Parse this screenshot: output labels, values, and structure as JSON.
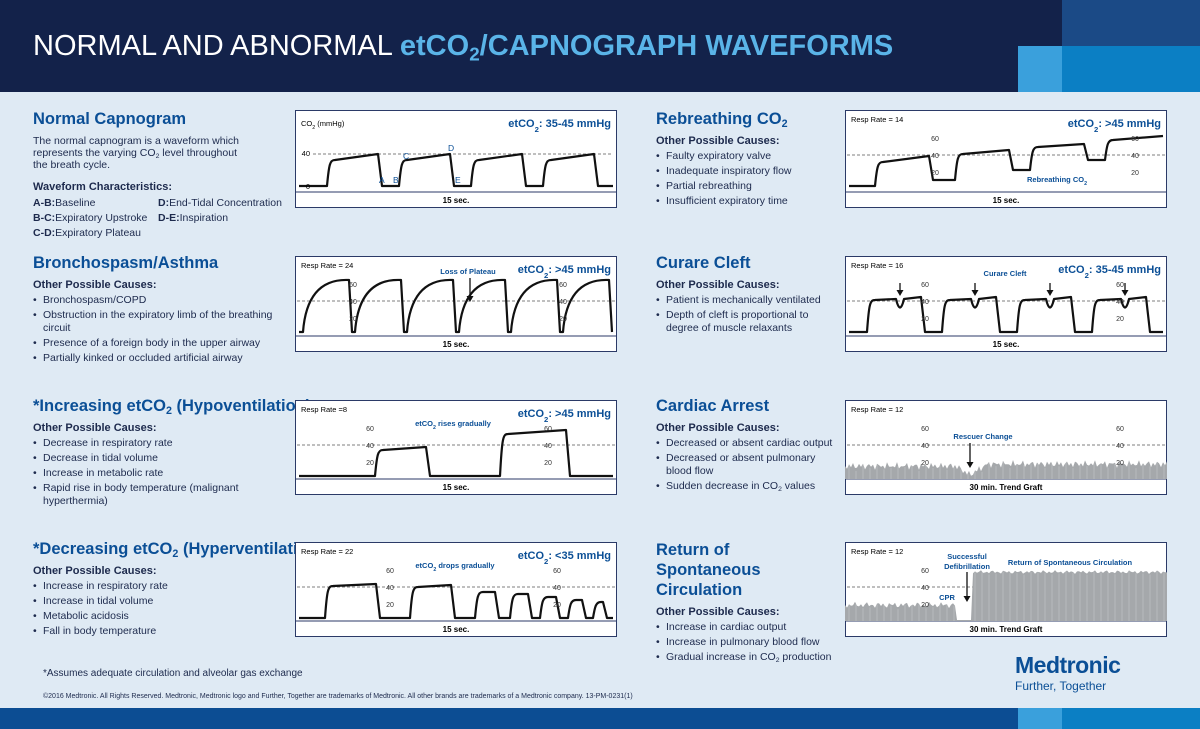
{
  "header": {
    "title_white": "NORMAL AND ABNORMAL ",
    "title_blue": [
      "etCO",
      "2",
      "/CAPNOGRAPH WAVEFORMS"
    ]
  },
  "panels": [
    {
      "title": "Normal Capnogram",
      "description": [
        "The normal capnogram is a waveform which represents the varying CO",
        "2",
        " level throughout the breath cycle."
      ],
      "characteristics_heading": "Waveform Characteristics:",
      "characteristics": [
        {
          "key": "A-B:",
          "text": "Baseline"
        },
        {
          "key": "B-C:",
          "text": "Expiratory Upstroke"
        },
        {
          "key": "C-D:",
          "text": "Expiratory Plateau"
        },
        {
          "key": "D:",
          "text": "End-Tidal Concentration"
        },
        {
          "key": "D-E:",
          "text": "Inspiration"
        }
      ],
      "chart": {
        "axis_label": [
          "CO",
          "2",
          " (mmHg)"
        ],
        "range": [
          "etCO",
          "2",
          ": 35-45 mmHg"
        ],
        "ticks": [
          "40",
          "0"
        ],
        "points": [
          "A",
          "B",
          "C",
          "D",
          "E"
        ],
        "time": "15 sec."
      }
    },
    {
      "title": [
        "Rebreathing CO",
        "2"
      ],
      "causes_heading": "Other Possible Causes:",
      "causes": [
        "Faulty expiratory valve",
        "Inadequate inspiratory flow",
        "Partial rebreathing",
        "Insufficient expiratory time"
      ],
      "chart": {
        "resp_rate": "Resp Rate = 14",
        "range": [
          "etCO",
          "2",
          ": >45 mmHg"
        ],
        "scale": [
          "60",
          "40",
          "20"
        ],
        "annotations": [
          [
            "Rebreathing CO",
            "2"
          ]
        ],
        "time": "15 sec."
      }
    },
    {
      "title": "Bronchospasm/Asthma",
      "causes_heading": "Other Possible Causes:",
      "causes": [
        "Bronchospasm/COPD",
        "Obstruction in the expiratory limb of the breathing circuit",
        "Presence of a foreign body in the upper airway",
        "Partially kinked or occluded artificial airway"
      ],
      "chart": {
        "resp_rate": "Resp Rate = 24",
        "range": [
          "etCO",
          "2",
          ": >45 mmHg"
        ],
        "scale": [
          "60",
          "40",
          "20"
        ],
        "annotations": [
          "Loss of Plateau"
        ],
        "time": "15 sec."
      }
    },
    {
      "title": "Curare Cleft",
      "causes_heading": "Other Possible Causes:",
      "causes": [
        "Patient is mechanically ventilated",
        "Depth of cleft is proportional to degree of muscle relaxants"
      ],
      "chart": {
        "resp_rate": "Resp Rate = 16",
        "range": [
          "etCO",
          "2",
          ": 35-45 mmHg"
        ],
        "scale": [
          "60",
          "40",
          "20"
        ],
        "annotations": [
          "Curare Cleft"
        ],
        "time": "15 sec."
      }
    },
    {
      "title": [
        "*Increasing etCO",
        "2",
        " (Hypoventilation)"
      ],
      "causes_heading": "Other Possible Causes:",
      "causes": [
        "Decrease in respiratory rate",
        "Decrease in tidal volume",
        "Increase in metabolic rate",
        "Rapid rise in body temperature (malignant hyperthermia)"
      ],
      "chart": {
        "resp_rate": "Resp Rate =8",
        "range": [
          "etCO",
          "2",
          ": >45 mmHg"
        ],
        "scale": [
          "60",
          "40",
          "20"
        ],
        "annotations": [
          [
            "etCO",
            "2",
            " rises gradually"
          ]
        ],
        "time": "15 sec."
      }
    },
    {
      "title": "Cardiac Arrest",
      "causes_heading": "Other Possible Causes:",
      "causes": [
        "Decreased or absent cardiac output",
        "Decreased or absent pulmonary blood flow",
        [
          "Sudden decrease in CO",
          "2",
          " values"
        ]
      ],
      "chart": {
        "resp_rate": "Resp Rate = 12",
        "scale": [
          "60",
          "40",
          "20"
        ],
        "annotations": [
          "Rescuer Change"
        ],
        "time": "30 min. Trend Graft"
      }
    },
    {
      "title": [
        "*Decreasing etCO",
        "2",
        " (Hyperventilation)"
      ],
      "causes_heading": "Other Possible Causes:",
      "causes": [
        "Increase in respiratory rate",
        "Increase in tidal volume",
        "Metabolic acidosis",
        "Fall in body temperature"
      ],
      "chart": {
        "resp_rate": "Resp Rate = 22",
        "range": [
          "etCO",
          "2",
          ": <35 mmHg"
        ],
        "scale": [
          "60",
          "40",
          "20"
        ],
        "annotations": [
          [
            "etCO",
            "2",
            " drops gradually"
          ]
        ],
        "time": "15 sec."
      }
    },
    {
      "title": "Return of Spontaneous Circulation",
      "causes_heading": "Other Possible Causes:",
      "causes": [
        "Increase in cardiac output",
        "Increase in pulmonary blood flow",
        [
          "Gradual increase in CO",
          "2",
          " production"
        ]
      ],
      "chart": {
        "resp_rate": "Resp Rate = 12",
        "scale": [
          "60",
          "40",
          "20"
        ],
        "annotations": [
          "Successful",
          "Defibrillation",
          "Return of Spontaneous Circulation",
          "CPR"
        ],
        "time": "30 min. Trend Graft"
      }
    }
  ],
  "footer": {
    "note": "*Assumes adequate circulation and alveolar gas exchange",
    "copyright": "©2016 Medtronic. All Rights Reserved. Medtronic, Medtronic logo and Further, Together are trademarks of Medtronic. All other brands are trademarks of a Medtronic company.  13-PM-0231(1)",
    "logo": "Medtronic",
    "tagline": "Further, Together"
  }
}
